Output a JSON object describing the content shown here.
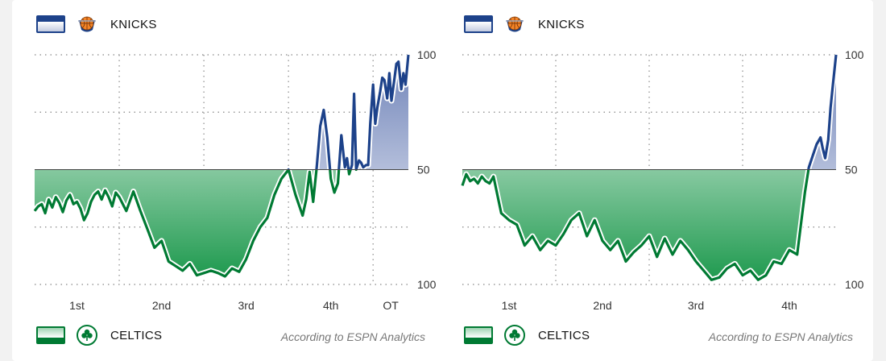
{
  "colors": {
    "knicks": "#1d428a",
    "celtics": "#007a33",
    "grid": "#9a9a9a"
  },
  "panels": [
    {
      "knicks_label": "KNICKS",
      "celtics_label": "CELTICS",
      "source": "According to ESPN Analytics",
      "knicks_logo_icon": "knicks-ball-logo-icon",
      "celtics_logo_icon": "celtics-clover-logo-icon"
    },
    {
      "knicks_label": "KNICKS",
      "celtics_label": "CELTICS",
      "source": "According to ESPN Analytics",
      "knicks_logo_icon": "knicks-ball-logo-icon",
      "celtics_logo_icon": "celtics-clover-logo-icon"
    }
  ],
  "chart_data": [
    {
      "type": "area",
      "title": "",
      "y_tick_labels": [
        "100",
        "50",
        "100"
      ],
      "y_meaning": "win probability (%) — above 50 favors Knicks, below 50 favors Celtics",
      "ylim": [
        -100,
        100
      ],
      "grid": true,
      "periods": [
        "1st",
        "2nd",
        "3rd",
        "4th",
        "OT"
      ],
      "x_unit": "game minutes",
      "xlim": [
        0,
        53
      ],
      "series": [
        {
          "x": [
            0,
            0.5,
            1,
            1.5,
            2,
            2.5,
            3,
            3.5,
            4,
            4.5,
            5,
            5.5,
            6,
            6.5,
            7,
            7.5,
            8,
            8.5,
            9,
            9.5,
            10,
            10.5,
            11,
            11.5,
            12,
            13,
            14,
            15,
            16,
            17,
            18,
            19,
            20,
            21,
            22,
            23,
            24,
            25,
            26,
            27,
            28,
            29,
            30,
            31,
            32,
            33,
            34,
            35,
            36,
            37,
            38,
            38.5,
            39,
            39.5,
            40,
            40.5,
            41,
            41.5,
            42,
            42.5,
            43,
            43.5,
            44,
            44.3,
            44.6,
            45,
            45.3,
            45.6,
            46,
            46.3,
            46.6,
            47,
            47.3,
            47.6,
            48,
            48.3,
            48.6,
            49,
            49.3,
            49.6,
            50,
            50.3,
            50.6,
            51,
            51.3,
            51.6,
            52,
            52.3,
            52.6,
            53
          ],
          "y": [
            -36,
            -32,
            -30,
            -38,
            -26,
            -33,
            -24,
            -29,
            -37,
            -27,
            -22,
            -30,
            -28,
            -34,
            -44,
            -38,
            -28,
            -22,
            -19,
            -26,
            -18,
            -24,
            -32,
            -20,
            -24,
            -36,
            -19,
            -36,
            -52,
            -68,
            -62,
            -80,
            -84,
            -88,
            -82,
            -92,
            -90,
            -88,
            -90,
            -93,
            -86,
            -89,
            -78,
            -62,
            -50,
            -42,
            -22,
            -8,
            0,
            -22,
            -40,
            -26,
            -2,
            -28,
            2,
            38,
            52,
            28,
            -8,
            -20,
            -12,
            30,
            2,
            10,
            -4,
            4,
            66,
            0,
            8,
            6,
            2,
            4,
            4,
            40,
            74,
            40,
            54,
            68,
            80,
            78,
            62,
            84,
            60,
            78,
            92,
            94,
            70,
            84,
            74,
            100
          ]
        }
      ]
    },
    {
      "type": "area",
      "title": "",
      "y_tick_labels": [
        "100",
        "50",
        "100"
      ],
      "y_meaning": "win probability (%) — above 50 favors Knicks, below 50 favors Celtics",
      "ylim": [
        -100,
        100
      ],
      "grid": true,
      "periods": [
        "1st",
        "2nd",
        "3rd",
        "4th"
      ],
      "x_unit": "game minutes",
      "xlim": [
        0,
        48
      ],
      "series": [
        {
          "x": [
            0,
            0.5,
            1,
            1.5,
            2,
            2.5,
            3,
            3.5,
            4,
            5,
            6,
            7,
            8,
            9,
            10,
            11,
            12,
            13,
            14,
            15,
            16,
            17,
            18,
            19,
            20,
            21,
            22,
            23,
            24,
            25,
            26,
            27,
            28,
            29,
            30,
            31,
            32,
            33,
            34,
            35,
            36,
            37,
            38,
            39,
            40,
            41,
            42,
            43,
            44,
            44.5,
            45,
            45.5,
            46,
            46.3,
            46.6,
            47,
            47.3,
            47.6,
            48
          ],
          "y": [
            -14,
            -4,
            -10,
            -8,
            -12,
            -6,
            -10,
            -12,
            -6,
            -38,
            -44,
            -48,
            -66,
            -58,
            -70,
            -62,
            -66,
            -56,
            -44,
            -38,
            -58,
            -44,
            -62,
            -70,
            -62,
            -80,
            -72,
            -66,
            -58,
            -76,
            -60,
            -74,
            -62,
            -70,
            -80,
            -88,
            -96,
            -94,
            -86,
            -82,
            -92,
            -88,
            -96,
            -92,
            -80,
            -82,
            -70,
            -74,
            -20,
            2,
            12,
            22,
            28,
            18,
            10,
            26,
            54,
            74,
            100
          ]
        }
      ]
    }
  ]
}
